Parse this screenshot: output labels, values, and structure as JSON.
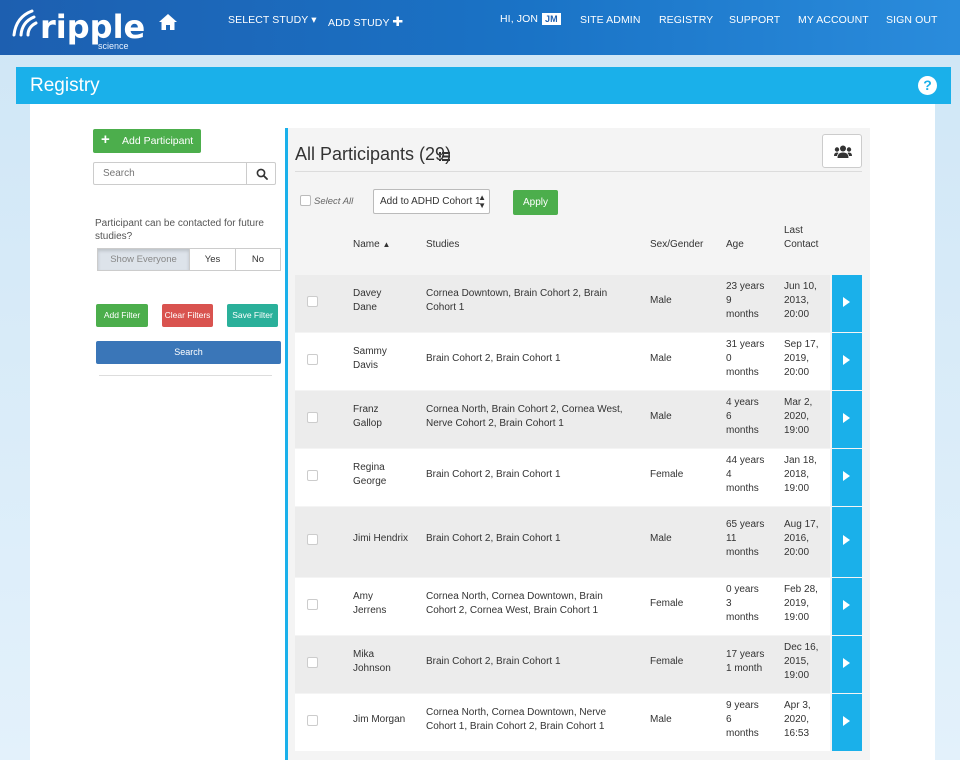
{
  "nav": {
    "logo_text": "ripple",
    "logo_sub": "science",
    "select_study": "SELECT STUDY",
    "add_study": "ADD STUDY",
    "greeting": "HI, JON",
    "user_initials": "JM",
    "site_admin": "SITE ADMIN",
    "registry": "REGISTRY",
    "support": "SUPPORT",
    "my_account": "MY ACCOUNT",
    "sign_out": "SIGN OUT",
    "bg_color": "#1d5fb0"
  },
  "page": {
    "title": "Registry",
    "help_glyph": "?",
    "accent": "#1ab0ea"
  },
  "sidebar": {
    "add_participant": "Add Participant",
    "search_placeholder": "Search",
    "contact_question": "Participant can be contacted for future studies?",
    "contact_options": [
      "Show Everyone",
      "Yes",
      "No"
    ],
    "add_filter": "Add Filter",
    "clear_filters": "Clear Filters",
    "save_filter": "Save Filter",
    "search_button": "Search"
  },
  "main": {
    "title": "All Participants (29)",
    "select_all": "Select All",
    "cohort_option": "Add to ADHD Cohort 1",
    "apply": "Apply",
    "columns": {
      "name": "Name",
      "studies": "Studies",
      "sex": "Sex/Gender",
      "age": "Age",
      "last_contact": "Last Contact"
    }
  },
  "participants": [
    {
      "name": "Davey Dane",
      "studies": "Cornea Downtown, Brain Cohort 2, Brain Cohort 1",
      "sex": "Male",
      "age": "23 years 9 months",
      "last_contact": "Jun 10, 2013, 20:00"
    },
    {
      "name": "Sammy Davis",
      "studies": "Brain Cohort 2, Brain Cohort 1",
      "sex": "Male",
      "age": "31 years 0 months",
      "last_contact": "Sep 17, 2019, 20:00"
    },
    {
      "name": "Franz Gallop",
      "studies": "Cornea North, Brain Cohort 2, Cornea West, Nerve Cohort 2, Brain Cohort 1",
      "sex": "Male",
      "age": "4 years 6 months",
      "last_contact": "Mar 2, 2020, 19:00"
    },
    {
      "name": "Regina George",
      "studies": "Brain Cohort 2, Brain Cohort 1",
      "sex": "Female",
      "age": "44 years 4 months",
      "last_contact": "Jan 18, 2018, 19:00"
    },
    {
      "name": "Jimi Hendrix",
      "studies": "Brain Cohort 2, Brain Cohort 1",
      "sex": "Male",
      "age": "65 years 11 months",
      "last_contact": "Aug 17, 2016, 20:00"
    },
    {
      "name": "Amy Jerrens",
      "studies": "Cornea North, Cornea Downtown, Brain Cohort 2, Cornea West, Brain Cohort 1",
      "sex": "Female",
      "age": "0 years 3 months",
      "last_contact": "Feb 28, 2019, 19:00"
    },
    {
      "name": "Mika Johnson",
      "studies": "Brain Cohort 2, Brain Cohort 1",
      "sex": "Female",
      "age": "17 years 1 month",
      "last_contact": "Dec 16, 2015, 19:00"
    },
    {
      "name": "Jim Morgan",
      "studies": "Cornea North, Cornea Downtown, Nerve Cohort 1, Brain Cohort 2, Brain Cohort 1",
      "sex": "Male",
      "age": "9 years 6 months",
      "last_contact": "Apr 3, 2020, 16:53"
    }
  ]
}
